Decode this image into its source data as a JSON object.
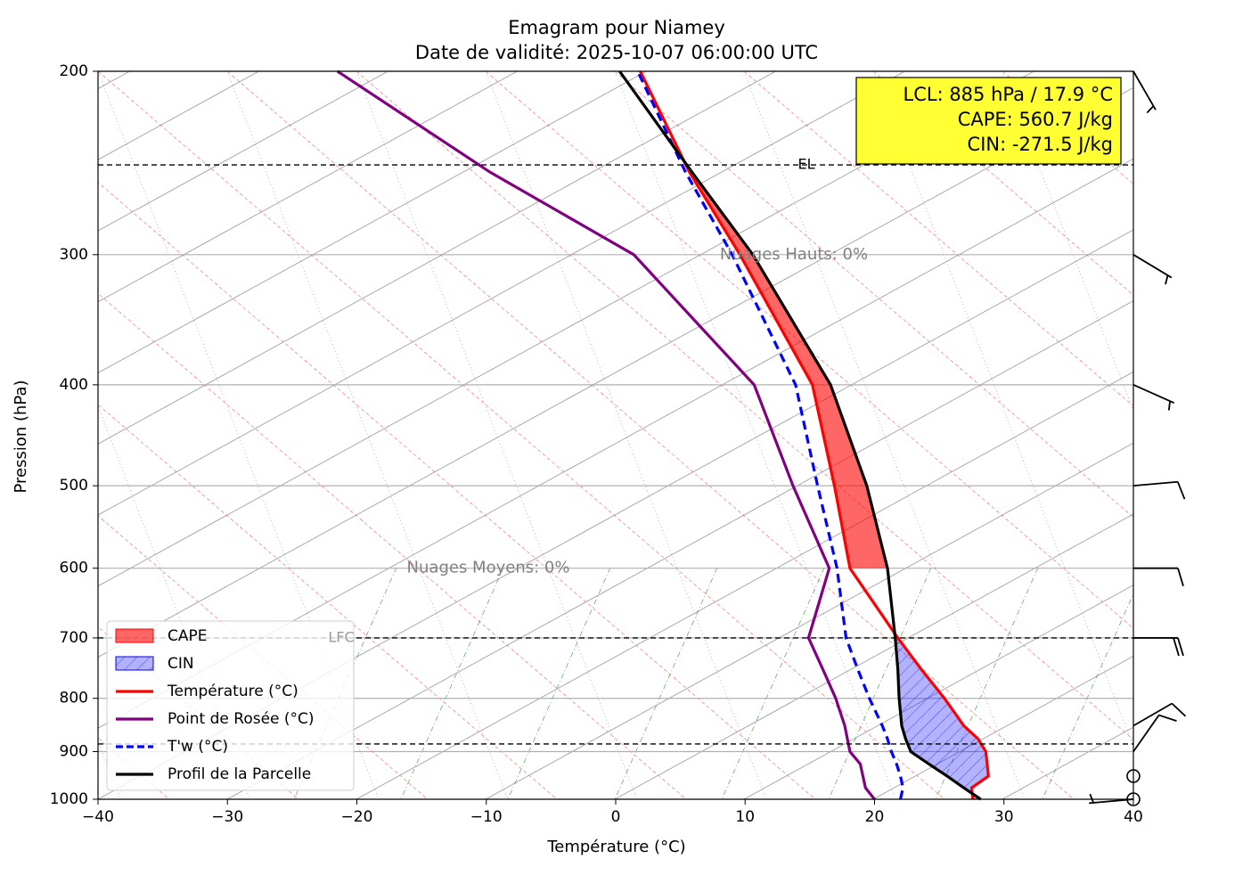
{
  "chart_data": {
    "type": "emagram",
    "title": "Emagram pour Niamey",
    "subtitle": "Date de validité: 2025-10-07 06:00:00 UTC",
    "x_label": "Température (°C)",
    "y_label": "Pression (hPa)",
    "xlim": [
      -40,
      40
    ],
    "xticks": [
      {
        "value": -40,
        "label": "−40"
      },
      {
        "value": -30,
        "label": "−30"
      },
      {
        "value": -20,
        "label": "−20"
      },
      {
        "value": -10,
        "label": "−10"
      },
      0,
      10,
      20,
      30,
      40
    ],
    "ylim": [
      1000,
      200
    ],
    "y_log": true,
    "yticks": [
      200,
      300,
      400,
      500,
      600,
      700,
      800,
      900,
      1000
    ],
    "grid": true,
    "pressure": [
      1000,
      975,
      950,
      925,
      900,
      875,
      850,
      800,
      750,
      700,
      600,
      500,
      400,
      300,
      250,
      200
    ],
    "series": [
      {
        "name": "Température (°C)",
        "color": "#ff0000",
        "style": "solid",
        "values": [
          27.6,
          27.5,
          28.8,
          28.7,
          28.6,
          28.0,
          26.9,
          25.4,
          23.6,
          21.8,
          18.1,
          16.9,
          15.2,
          9.6,
          5.7,
          1.9
        ]
      },
      {
        "name": "Point de Rosée (°C)",
        "color": "#800080",
        "style": "solid",
        "values": [
          20.0,
          19.3,
          19.1,
          18.9,
          18.1,
          17.9,
          17.7,
          17.0,
          16.0,
          14.9,
          16.5,
          13.7,
          10.7,
          1.4,
          -9.7,
          -21.5
        ]
      },
      {
        "name": "T'w (°C)",
        "color": "#0000ff",
        "style": "dashed",
        "values": [
          22.0,
          22.2,
          22.0,
          21.7,
          21.3,
          21.0,
          20.6,
          19.6,
          18.7,
          17.8,
          17.1,
          15.6,
          13.9,
          9.0,
          5.4,
          1.7
        ]
      },
      {
        "name": "Profil de la Parcelle",
        "color": "#000000",
        "style": "solid",
        "values": [
          28.2,
          26.9,
          25.6,
          24.2,
          22.8,
          22.4,
          22.1,
          21.9,
          21.8,
          21.6,
          21.0,
          19.4,
          16.6,
          10.6,
          5.9,
          0.3
        ]
      }
    ],
    "fills": [
      {
        "name": "CAPE",
        "color": "#ff0000"
      },
      {
        "name": "CIN",
        "color": "#0000ff"
      }
    ],
    "levels": [
      {
        "label": "EL",
        "pressure": 246
      },
      {
        "label": "LFC",
        "pressure": 700
      },
      {
        "pressure": 885
      }
    ],
    "info_box": [
      "LCL: 885 hPa / 17.9 °C",
      "CAPE: 560.7 J/kg",
      "CIN: -271.5 J/kg"
    ],
    "cloud_notes": [
      "Nuages Hauts: 0%",
      "Nuages Moyens: 0%"
    ],
    "wind": {
      "pressure": [
        200,
        300,
        400,
        500,
        600,
        700,
        850,
        900,
        950,
        1000
      ],
      "direction": [
        150,
        121,
        114,
        85,
        90,
        90,
        60,
        35,
        0,
        265
      ],
      "speed": [
        5,
        5,
        5,
        10,
        10,
        20,
        10,
        10,
        0,
        5
      ]
    }
  }
}
